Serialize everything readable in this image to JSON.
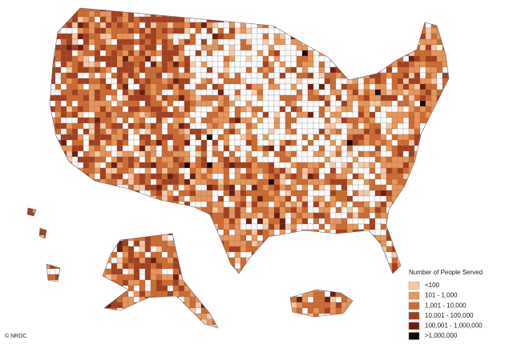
{
  "legend": {
    "title": "Number of People Served",
    "items": [
      {
        "label": "<100",
        "color": "#f9c7a4"
      },
      {
        "label": "101 - 1,000",
        "color": "#ea9557"
      },
      {
        "label": "1,001 - 10,000",
        "color": "#d06a2f"
      },
      {
        "label": "10,001 - 100,000",
        "color": "#a63e1c"
      },
      {
        "label": "100,001 - 1,000,000",
        "color": "#6e1e0e"
      },
      {
        "label": ">1,000,000",
        "color": "#1a0805"
      }
    ]
  },
  "credit": "© NRDC"
}
